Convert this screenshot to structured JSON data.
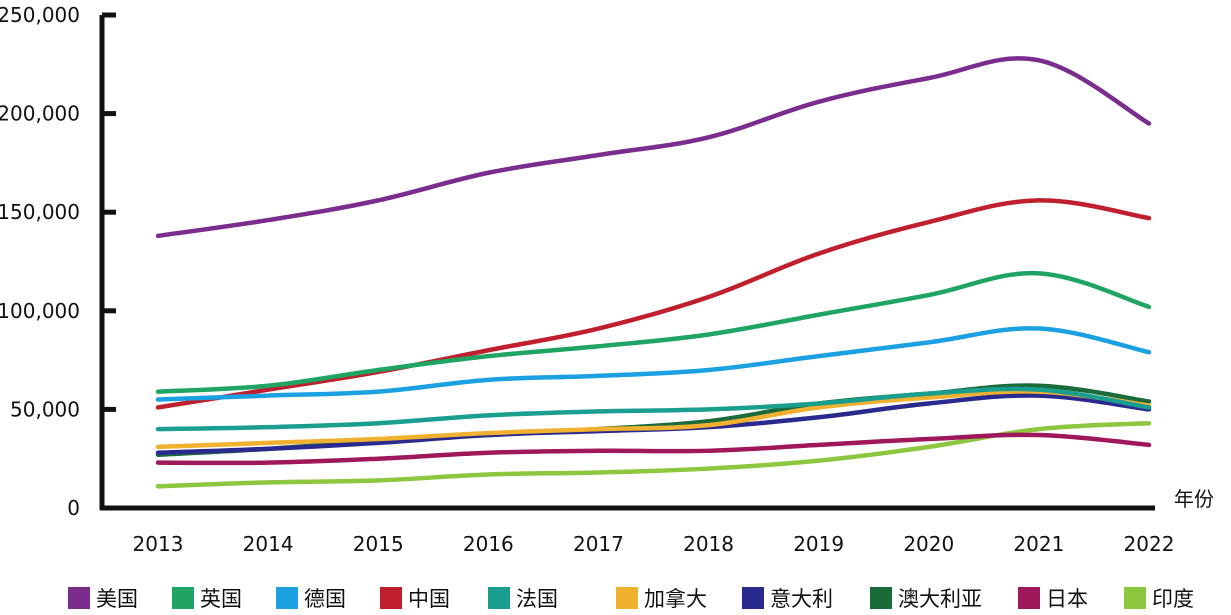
{
  "chart_data": {
    "type": "line",
    "title": "",
    "xlabel": "年份",
    "ylabel": "",
    "x": [
      "2013",
      "2014",
      "2015",
      "2016",
      "2017",
      "2018",
      "2019",
      "2020",
      "2021",
      "2022"
    ],
    "yticks": [
      "0",
      "50,000",
      "100,000",
      "150,000",
      "200,000",
      "250,000"
    ],
    "ylim": [
      0,
      250000
    ],
    "grid": false,
    "legend_position": "bottom",
    "series": [
      {
        "name": "美国",
        "color": "#7b2d8e",
        "values": [
          138000,
          146000,
          156000,
          170000,
          179000,
          188000,
          206000,
          218000,
          227000,
          195000
        ]
      },
      {
        "name": "英国",
        "color": "#1fa463",
        "values": [
          59000,
          62000,
          70000,
          77000,
          82000,
          88000,
          98000,
          108000,
          119000,
          102000
        ]
      },
      {
        "name": "德国",
        "color": "#1ba1e2",
        "values": [
          55000,
          57000,
          59000,
          65000,
          67000,
          70000,
          77000,
          84000,
          91000,
          79000
        ]
      },
      {
        "name": "中国",
        "color": "#c0202e",
        "values": [
          51000,
          60000,
          69000,
          80000,
          91000,
          107000,
          129000,
          145000,
          156000,
          147000
        ]
      },
      {
        "name": "法国",
        "color": "#1a9e8f",
        "values": [
          40000,
          41000,
          43000,
          47000,
          49000,
          50000,
          53000,
          58000,
          60000,
          51000
        ]
      },
      {
        "name": "加拿大",
        "color": "#f0b030",
        "values": [
          31000,
          33000,
          35000,
          38000,
          40000,
          42000,
          51000,
          56000,
          59000,
          52000
        ]
      },
      {
        "name": "意大利",
        "color": "#2a2a8e",
        "values": [
          28000,
          30000,
          33000,
          37000,
          39000,
          41000,
          46000,
          53000,
          57000,
          50000
        ]
      },
      {
        "name": "澳大利亚",
        "color": "#1a6b3a",
        "values": [
          27000,
          30000,
          34000,
          37000,
          40000,
          44000,
          53000,
          58000,
          62000,
          54000
        ]
      },
      {
        "name": "日本",
        "color": "#a0185c",
        "values": [
          23000,
          23000,
          25000,
          28000,
          29000,
          29000,
          32000,
          35000,
          37000,
          32000
        ]
      },
      {
        "name": "印度",
        "color": "#8dc63f",
        "values": [
          11000,
          13000,
          14000,
          17000,
          18000,
          20000,
          24000,
          31000,
          40000,
          43000
        ]
      }
    ]
  }
}
